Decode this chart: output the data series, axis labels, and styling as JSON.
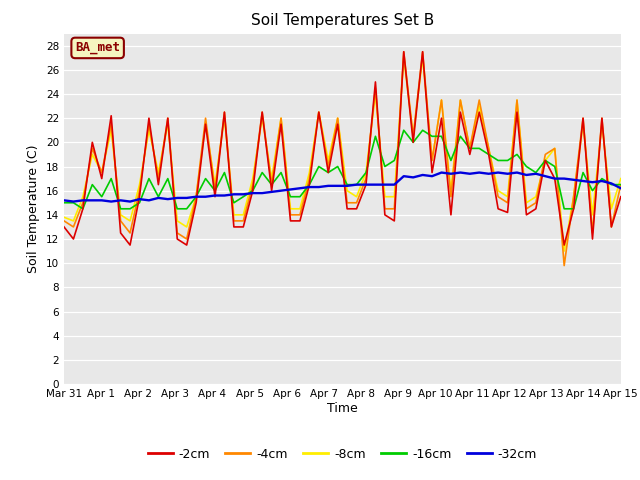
{
  "title": "Soil Temperatures Set B",
  "xlabel": "Time",
  "ylabel": "Soil Temperature (C)",
  "ylim": [
    0,
    29
  ],
  "yticks": [
    0,
    2,
    4,
    6,
    8,
    10,
    12,
    14,
    16,
    18,
    20,
    22,
    24,
    26,
    28
  ],
  "plot_bg_color": "#e8e8e8",
  "fig_bg_color": "#ffffff",
  "legend_label": "BA_met",
  "series_colors": {
    "-2cm": "#dd0000",
    "-4cm": "#ff8800",
    "-8cm": "#ffee00",
    "-16cm": "#00cc00",
    "-32cm": "#0000dd"
  },
  "x_labels": [
    "Mar 31",
    "Apr 1",
    "Apr 2",
    "Apr 3",
    "Apr 4",
    "Apr 5",
    "Apr 6",
    "Apr 7",
    "Apr 8",
    "Apr 9",
    "Apr 10",
    "Apr 11",
    "Apr 12",
    "Apr 13",
    "Apr 14",
    "Apr 15"
  ],
  "depths_2cm": [
    13.0,
    12.0,
    14.5,
    20.0,
    17.0,
    22.2,
    12.5,
    11.5,
    15.5,
    22.0,
    16.5,
    22.0,
    12.0,
    11.5,
    15.0,
    21.5,
    15.5,
    22.5,
    13.0,
    13.0,
    16.0,
    22.5,
    16.0,
    21.5,
    13.5,
    13.5,
    16.5,
    22.5,
    17.5,
    21.5,
    14.5,
    14.5,
    16.5,
    25.0,
    14.0,
    13.5,
    27.5,
    20.0,
    27.5,
    17.5,
    22.0,
    14.0,
    22.5,
    19.0,
    22.5,
    19.0,
    14.5,
    14.2,
    22.5,
    14.0,
    14.5,
    18.5,
    17.0,
    11.5,
    14.5,
    22.0,
    12.0,
    22.0,
    13.0,
    15.5
  ],
  "depths_4cm": [
    13.5,
    13.0,
    15.0,
    19.5,
    17.5,
    21.5,
    13.5,
    12.5,
    16.0,
    21.5,
    17.0,
    22.0,
    12.5,
    12.0,
    15.5,
    22.0,
    16.0,
    22.5,
    13.5,
    13.5,
    16.5,
    22.5,
    16.5,
    22.0,
    14.0,
    14.0,
    17.0,
    22.5,
    18.0,
    22.0,
    15.0,
    15.0,
    17.0,
    24.5,
    14.5,
    14.5,
    27.5,
    20.5,
    27.5,
    18.5,
    23.5,
    15.5,
    23.5,
    19.5,
    23.5,
    19.5,
    15.5,
    15.0,
    23.5,
    14.5,
    15.0,
    19.0,
    19.5,
    9.8,
    15.5,
    22.0,
    12.5,
    22.0,
    13.0,
    16.5
  ],
  "depths_8cm": [
    13.8,
    13.5,
    15.5,
    19.0,
    17.5,
    21.0,
    14.0,
    13.5,
    16.5,
    21.0,
    17.5,
    21.5,
    13.5,
    13.0,
    15.5,
    21.5,
    16.5,
    22.0,
    14.0,
    14.0,
    17.0,
    22.0,
    17.0,
    22.0,
    14.5,
    14.5,
    17.5,
    22.5,
    18.5,
    22.0,
    16.0,
    15.5,
    17.5,
    24.0,
    15.5,
    15.5,
    27.0,
    20.5,
    27.0,
    18.5,
    23.5,
    16.0,
    23.5,
    19.5,
    23.0,
    19.5,
    16.0,
    15.5,
    23.5,
    15.0,
    15.5,
    18.5,
    19.5,
    11.0,
    15.5,
    21.5,
    14.0,
    21.5,
    14.5,
    17.0
  ],
  "depths_16cm": [
    15.0,
    15.0,
    14.5,
    16.5,
    15.5,
    17.0,
    14.5,
    14.5,
    15.0,
    17.0,
    15.5,
    17.0,
    14.5,
    14.5,
    15.5,
    17.0,
    16.0,
    17.5,
    15.0,
    15.5,
    16.0,
    17.5,
    16.5,
    17.5,
    15.5,
    15.5,
    16.5,
    18.0,
    17.5,
    18.0,
    16.5,
    16.5,
    17.5,
    20.5,
    18.0,
    18.5,
    21.0,
    20.0,
    21.0,
    20.5,
    20.5,
    18.5,
    20.5,
    19.5,
    19.5,
    19.0,
    18.5,
    18.5,
    19.0,
    18.0,
    17.5,
    18.5,
    18.0,
    14.5,
    14.5,
    17.5,
    16.0,
    17.0,
    16.5,
    16.5
  ],
  "depths_32cm": [
    15.2,
    15.1,
    15.2,
    15.2,
    15.2,
    15.1,
    15.2,
    15.1,
    15.3,
    15.2,
    15.4,
    15.3,
    15.4,
    15.4,
    15.5,
    15.5,
    15.6,
    15.6,
    15.7,
    15.7,
    15.8,
    15.8,
    15.9,
    16.0,
    16.1,
    16.2,
    16.3,
    16.3,
    16.4,
    16.4,
    16.4,
    16.5,
    16.5,
    16.5,
    16.5,
    16.5,
    17.2,
    17.1,
    17.3,
    17.2,
    17.5,
    17.4,
    17.5,
    17.4,
    17.5,
    17.4,
    17.5,
    17.4,
    17.5,
    17.3,
    17.4,
    17.2,
    17.0,
    17.0,
    16.9,
    16.8,
    16.7,
    16.8,
    16.6,
    16.2
  ]
}
